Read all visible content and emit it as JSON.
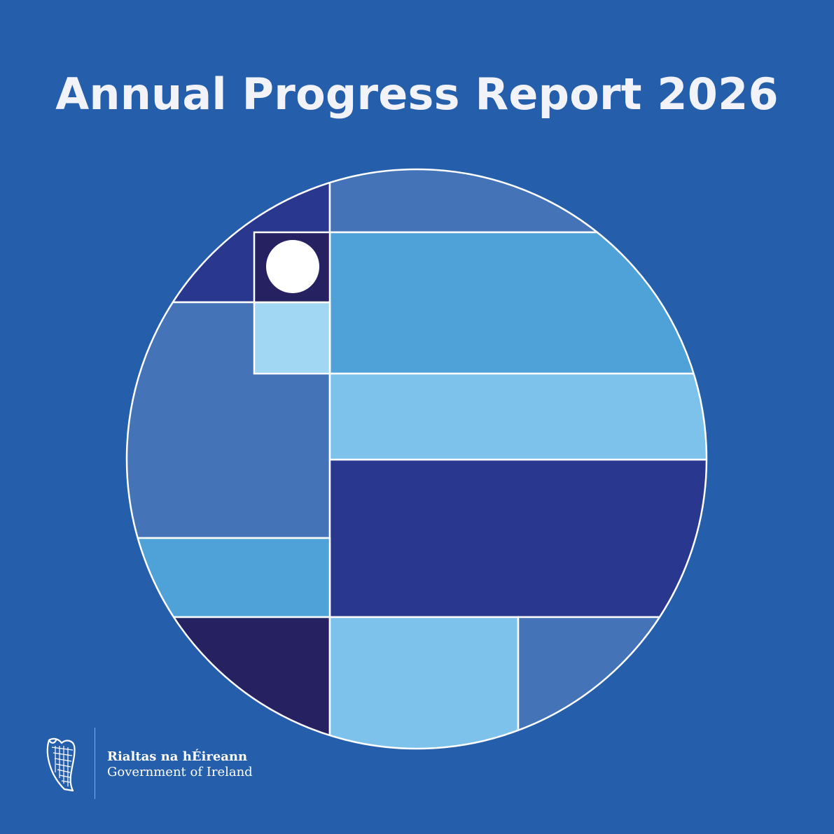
{
  "title": "Annual Progress Report 2026",
  "palette": {
    "background": "#255fab",
    "mid_blue": "#4473b8",
    "bright_blue": "#4ea2d8",
    "light_blue": "#7dc2eb",
    "pale_blue": "#a2d7f4",
    "indigo": "#2a378e",
    "navy": "#262262",
    "white": "#ffffff"
  },
  "logo": {
    "icon": "harp-icon",
    "irish_name": "Rialtas na hÉireann",
    "english_name": "Government of Ireland"
  }
}
